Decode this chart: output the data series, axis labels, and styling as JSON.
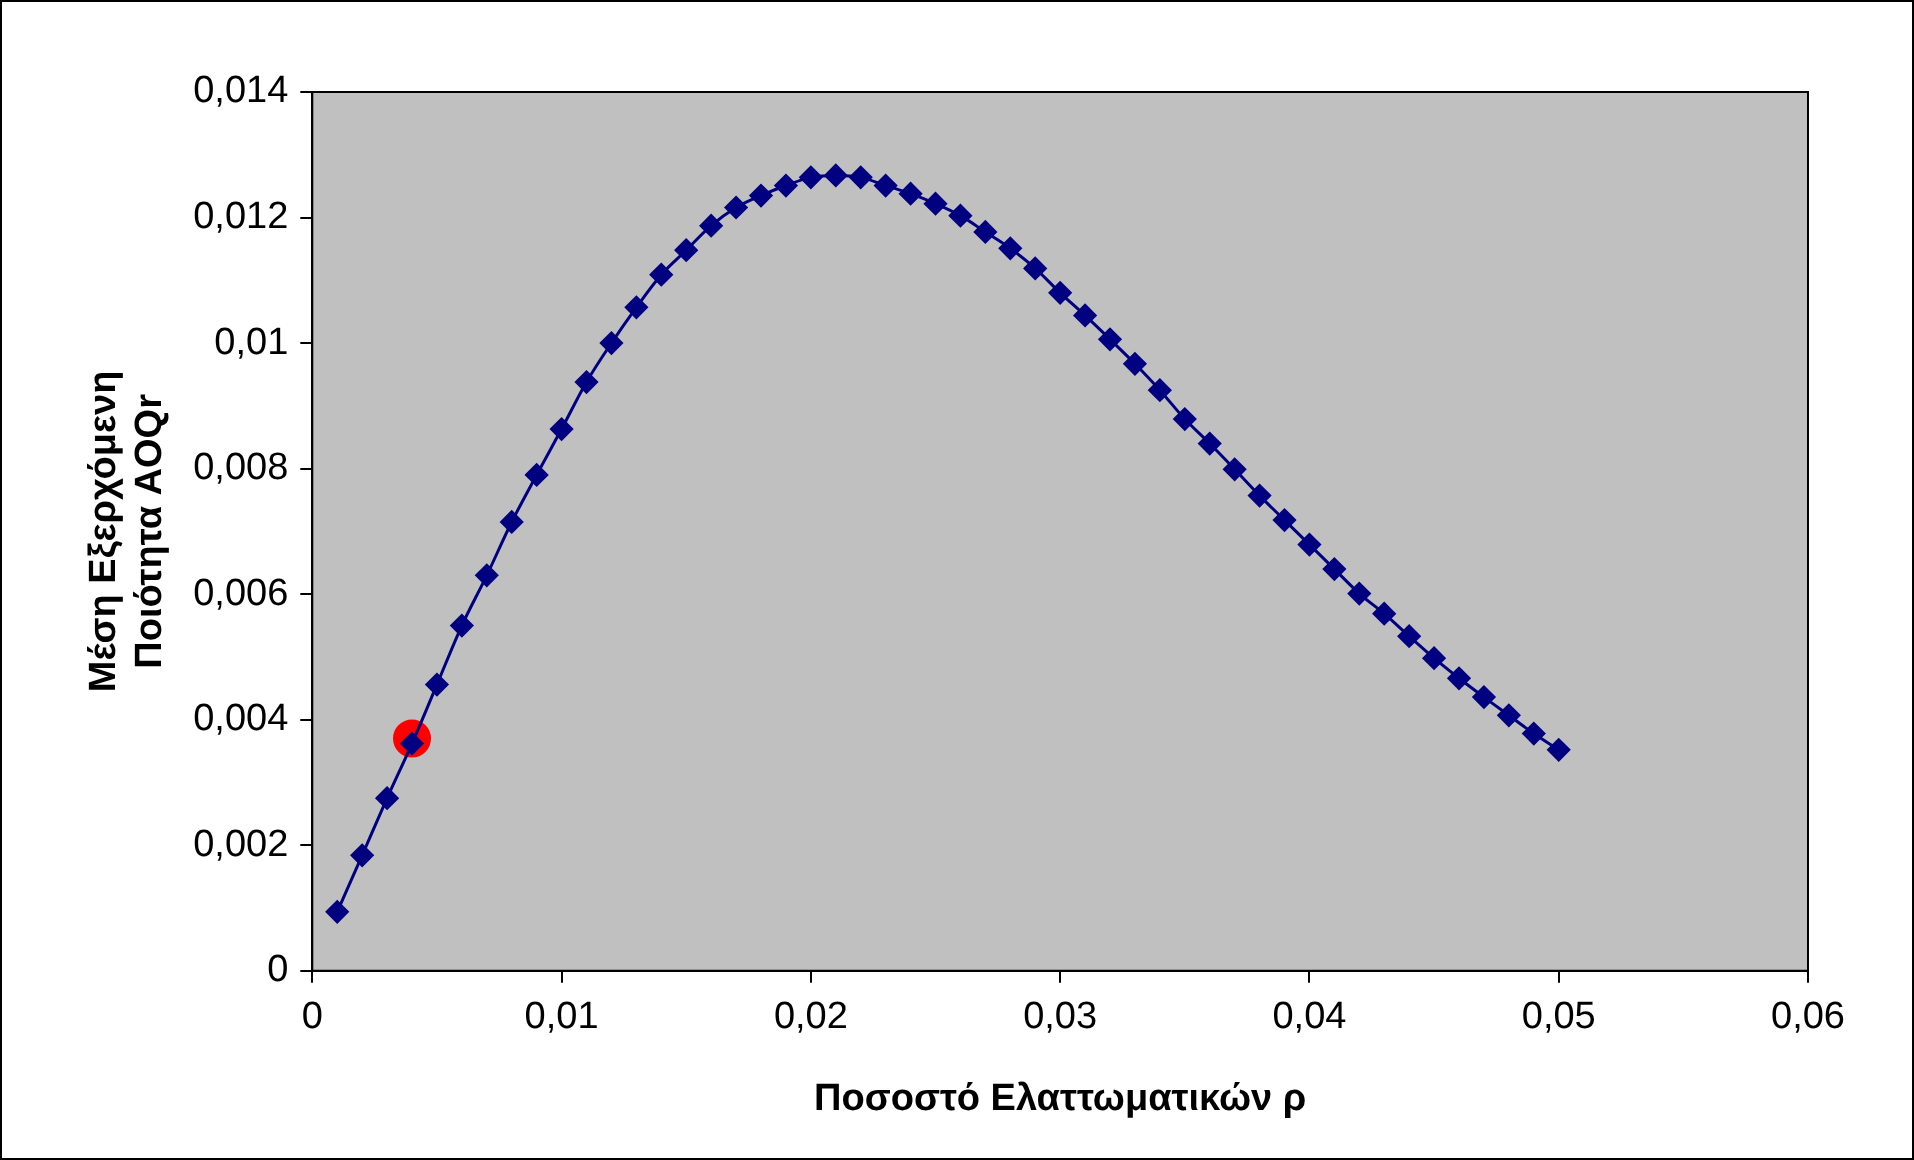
{
  "chart_data": {
    "type": "line",
    "xlabel": "Ποσοστό Ελαττωματικών ρ",
    "ylabel": "Μέση Εξερχόμενη Ποιότητα AOQr",
    "xlim": [
      0,
      0.06
    ],
    "xticks": [
      0,
      {
        "value": 0.01,
        "label": "0,01"
      },
      {
        "value": 0.02,
        "label": "0,02"
      },
      {
        "value": 0.03,
        "label": "0,03"
      },
      {
        "value": 0.04,
        "label": "0,04"
      },
      {
        "value": 0.05,
        "label": "0,05"
      },
      {
        "value": 0.06,
        "label": "0,06"
      }
    ],
    "ylim": [
      0,
      0.014
    ],
    "yticks": [
      0,
      {
        "value": 0.002,
        "label": "0,002"
      },
      {
        "value": 0.004,
        "label": "0,004"
      },
      {
        "value": 0.006,
        "label": "0,006"
      },
      {
        "value": 0.008,
        "label": "0,008"
      },
      {
        "value": 0.01,
        "label": "0,01"
      },
      {
        "value": 0.012,
        "label": "0,012"
      },
      {
        "value": 0.014,
        "label": "0,014"
      }
    ],
    "grid": false,
    "legend": false,
    "series": [
      {
        "type": "line",
        "color": "#000080",
        "marker": "diamond",
        "x": [
          0.001,
          0.002,
          0.003,
          0.004,
          0.005,
          0.006,
          0.007,
          0.008,
          0.009,
          0.01,
          0.011,
          0.012,
          0.013,
          0.014,
          0.015,
          0.016,
          0.017,
          0.018,
          0.019,
          0.02,
          0.021,
          0.022,
          0.023,
          0.024,
          0.025,
          0.026,
          0.027,
          0.028,
          0.029,
          0.03,
          0.031,
          0.032,
          0.033,
          0.034,
          0.035,
          0.036,
          0.037,
          0.038,
          0.039,
          0.04,
          0.041,
          0.042,
          0.043,
          0.044,
          0.045,
          0.046,
          0.047,
          0.048,
          0.049,
          0.05
        ],
        "values": [
          0.00094,
          0.00184,
          0.00275,
          0.00362,
          0.00456,
          0.0055,
          0.0063,
          0.00715,
          0.0079,
          0.00863,
          0.00938,
          0.01,
          0.01057,
          0.01109,
          0.01148,
          0.01187,
          0.01216,
          0.01235,
          0.01251,
          0.01264,
          0.01267,
          0.01264,
          0.01251,
          0.01238,
          0.01222,
          0.01203,
          0.01177,
          0.01151,
          0.01119,
          0.0108,
          0.01044,
          0.01006,
          0.00967,
          0.00925,
          0.00879,
          0.0084,
          0.00799,
          0.00757,
          0.00718,
          0.00679,
          0.0064,
          0.00601,
          0.00569,
          0.00533,
          0.00498,
          0.00466,
          0.00436,
          0.00407,
          0.00378,
          0.00352
        ]
      },
      {
        "type": "scatter",
        "color": "#ff0000",
        "marker": "circle",
        "x": [
          0.004
        ],
        "values": [
          0.0037
        ]
      }
    ]
  }
}
